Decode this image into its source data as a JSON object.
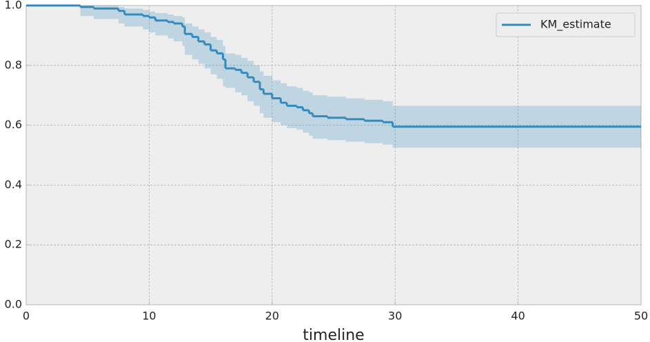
{
  "chart_data": {
    "type": "step",
    "xlabel": "timeline",
    "x": [
      0,
      4.4,
      5.5,
      7.5,
      8,
      9.5,
      10,
      10.5,
      11.5,
      12,
      12.7,
      12.9,
      13.5,
      14,
      14.5,
      15,
      15.5,
      16,
      16.2,
      17,
      17.5,
      18,
      18.5,
      19,
      19.3,
      20,
      20.7,
      21.2,
      22,
      22.5,
      23,
      23.3,
      24.5,
      26,
      27.5,
      29,
      29.8,
      50
    ],
    "series": [
      {
        "name": "KM_estimate",
        "color": "#348abd",
        "values": [
          1.0,
          0.995,
          0.99,
          0.982,
          0.97,
          0.965,
          0.96,
          0.95,
          0.945,
          0.94,
          0.93,
          0.905,
          0.895,
          0.88,
          0.87,
          0.85,
          0.84,
          0.82,
          0.79,
          0.785,
          0.775,
          0.76,
          0.745,
          0.72,
          0.705,
          0.69,
          0.675,
          0.665,
          0.66,
          0.65,
          0.64,
          0.63,
          0.625,
          0.62,
          0.615,
          0.61,
          0.595,
          0.595
        ],
        "lower": [
          1.0,
          0.965,
          0.955,
          0.94,
          0.93,
          0.92,
          0.91,
          0.9,
          0.89,
          0.88,
          0.865,
          0.835,
          0.82,
          0.805,
          0.79,
          0.77,
          0.755,
          0.73,
          0.725,
          0.71,
          0.7,
          0.68,
          0.665,
          0.64,
          0.625,
          0.61,
          0.6,
          0.59,
          0.585,
          0.575,
          0.565,
          0.555,
          0.55,
          0.545,
          0.54,
          0.535,
          0.525,
          0.525
        ],
        "upper": [
          1.0,
          1.0,
          1.0,
          0.995,
          0.99,
          0.985,
          0.98,
          0.975,
          0.97,
          0.965,
          0.96,
          0.94,
          0.93,
          0.92,
          0.91,
          0.895,
          0.885,
          0.865,
          0.84,
          0.835,
          0.825,
          0.815,
          0.8,
          0.78,
          0.765,
          0.75,
          0.74,
          0.73,
          0.725,
          0.715,
          0.71,
          0.7,
          0.695,
          0.69,
          0.685,
          0.68,
          0.665,
          0.665
        ]
      }
    ],
    "xlim": [
      0,
      50
    ],
    "ylim": [
      0,
      1
    ],
    "xticks": [
      0,
      10,
      20,
      30,
      40,
      50
    ],
    "yticks": [
      {
        "value": 0,
        "label": "0.0"
      },
      0.2,
      0.4,
      0.6,
      0.8,
      {
        "value": 1,
        "label": "1.0"
      }
    ],
    "grid": true,
    "legend": "upper right"
  }
}
